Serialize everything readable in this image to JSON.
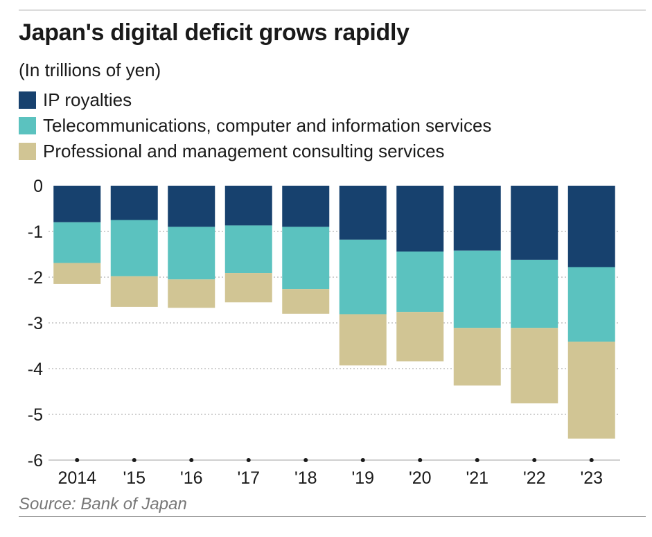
{
  "title": "Japan's digital deficit grows rapidly",
  "subtitle": "(In trillions of yen)",
  "source": "Source: Bank of Japan",
  "colors": {
    "ip_royalties": "#17416e",
    "telecom": "#5bc2bf",
    "consulting": "#d1c594",
    "grid": "#b5b5b5",
    "axis": "#1a1a1a"
  },
  "chart_data": {
    "type": "bar",
    "stacked": true,
    "title": "Japan's digital deficit grows rapidly",
    "ylabel": "In trillions of yen",
    "xlabel": "",
    "ylim": [
      -6,
      0
    ],
    "yticks": [
      0,
      -1,
      -2,
      -3,
      -4,
      -5,
      -6
    ],
    "categories": [
      "2014",
      "'15",
      "'16",
      "'17",
      "'18",
      "'19",
      "'20",
      "'21",
      "'22",
      "'23"
    ],
    "series": [
      {
        "name": "IP royalties",
        "color_key": "ip_royalties",
        "values": [
          -0.8,
          -0.75,
          -0.9,
          -0.87,
          -0.9,
          -1.18,
          -1.44,
          -1.42,
          -1.62,
          -1.78
        ]
      },
      {
        "name": "Telecommunications, computer and information services",
        "color_key": "telecom",
        "values": [
          -0.89,
          -1.23,
          -1.15,
          -1.04,
          -1.36,
          -1.63,
          -1.32,
          -1.69,
          -1.49,
          -1.63
        ]
      },
      {
        "name": "Professional and management consulting services",
        "color_key": "consulting",
        "values": [
          -0.46,
          -0.67,
          -0.62,
          -0.64,
          -0.54,
          -1.12,
          -1.08,
          -1.26,
          -1.65,
          -2.12
        ]
      }
    ]
  }
}
